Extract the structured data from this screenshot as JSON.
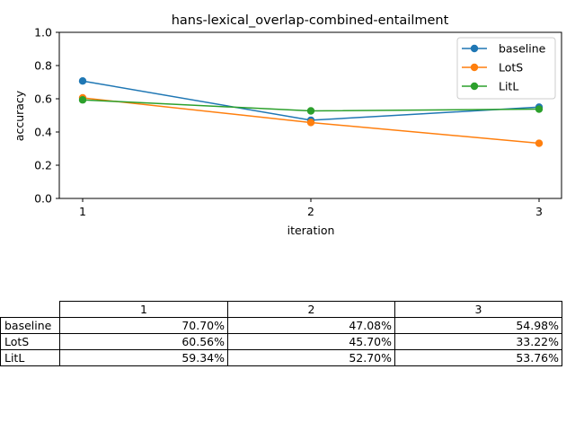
{
  "chart_data": {
    "type": "line",
    "title": "hans-lexical_overlap-combined-entailment",
    "xlabel": "iteration",
    "ylabel": "accuracy",
    "x": [
      1,
      2,
      3
    ],
    "xticks": [
      "1",
      "2",
      "3"
    ],
    "ylim": [
      0.0,
      1.0
    ],
    "yticks": [
      "0.0",
      "0.2",
      "0.4",
      "0.6",
      "0.8",
      "1.0"
    ],
    "grid": false,
    "legend_position": "top-right",
    "series": [
      {
        "name": "baseline",
        "color": "#1f77b4",
        "marker": "circle",
        "values": [
          0.707,
          0.4708,
          0.5498
        ]
      },
      {
        "name": "LotS",
        "color": "#ff7f0e",
        "marker": "circle",
        "values": [
          0.6056,
          0.457,
          0.3322
        ]
      },
      {
        "name": "LitL",
        "color": "#2ca02c",
        "marker": "circle",
        "values": [
          0.5934,
          0.527,
          0.5376
        ]
      }
    ]
  },
  "table": {
    "columns": [
      "1",
      "2",
      "3"
    ],
    "rows": [
      {
        "label": "baseline",
        "cells": [
          "70.70%",
          "47.08%",
          "54.98%"
        ]
      },
      {
        "label": "LotS",
        "cells": [
          "60.56%",
          "45.70%",
          "33.22%"
        ]
      },
      {
        "label": "LitL",
        "cells": [
          "59.34%",
          "52.70%",
          "53.76%"
        ]
      }
    ]
  }
}
